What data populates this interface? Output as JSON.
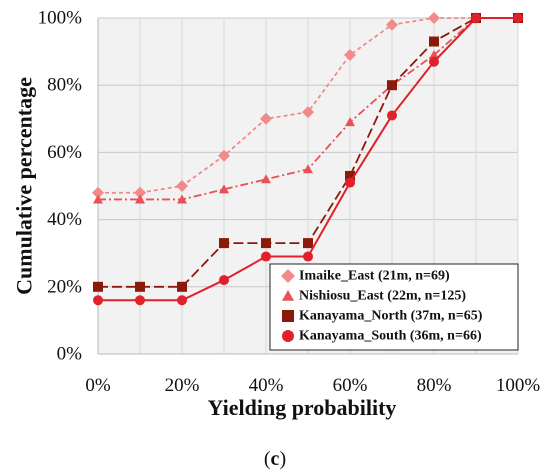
{
  "chart_data": {
    "type": "line",
    "xlabel": "Yielding probability",
    "ylabel": "Cumulative percentage",
    "x": [
      0,
      10,
      20,
      30,
      40,
      50,
      60,
      70,
      80,
      90,
      100
    ],
    "x_tick_labels": [
      "0%",
      "20%",
      "40%",
      "60%",
      "80%",
      "100%"
    ],
    "y_tick_labels": [
      "0%",
      "20%",
      "40%",
      "60%",
      "80%",
      "100%"
    ],
    "xlim": [
      0,
      100
    ],
    "ylim": [
      0,
      100
    ],
    "grid": "horizontal",
    "legend_position": "bottom-right",
    "caption": {
      "open": "(",
      "letter": "c",
      "close": ")"
    },
    "series": [
      {
        "name": "Imaike_East (21m, n=69)",
        "color": "#f28a8a",
        "marker": "diamond",
        "line_style": "short-dash",
        "values": [
          48,
          48,
          50,
          59,
          70,
          72,
          89,
          98,
          100,
          100,
          100
        ]
      },
      {
        "name": "Nishiosu_East (22m, n=125)",
        "color": "#e8505a",
        "marker": "triangle",
        "line_style": "dash-dot",
        "values": [
          46,
          46,
          46,
          49,
          52,
          55,
          69,
          80,
          89,
          100,
          100
        ]
      },
      {
        "name": "Kanayama_North (37m, n=65)",
        "color": "#8b1a0a",
        "marker": "square",
        "line_style": "long-dash",
        "values": [
          20,
          20,
          20,
          33,
          33,
          33,
          53,
          80,
          93,
          100,
          100
        ]
      },
      {
        "name": "Kanayama_South (36m, n=66)",
        "color": "#e0202a",
        "marker": "circle",
        "line_style": "solid",
        "values": [
          16,
          16,
          16,
          22,
          29,
          29,
          51,
          71,
          87,
          100,
          100
        ]
      }
    ]
  }
}
